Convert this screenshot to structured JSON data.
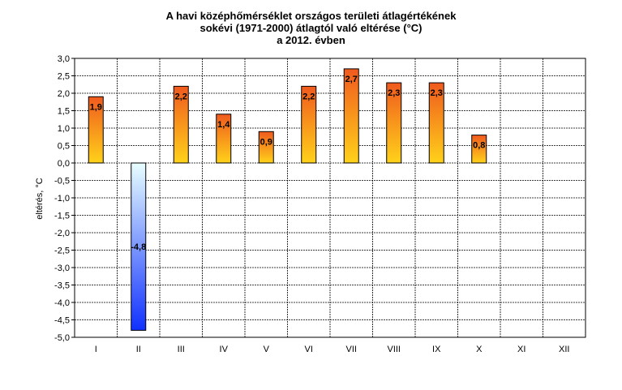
{
  "chart_data": {
    "type": "bar",
    "title": [
      "A havi középhőmérséklet országos területi átlagértékének",
      "sokévi (1971-2000) átlagtól való eltérése (°C)",
      "a 2012. évben"
    ],
    "ylabel": "eltérés, °C",
    "xlabel": "",
    "categories": [
      "I",
      "II",
      "III",
      "IV",
      "V",
      "VI",
      "VII",
      "VIII",
      "IX",
      "X",
      "XI",
      "XII"
    ],
    "values": [
      1.9,
      -4.8,
      2.2,
      1.4,
      0.9,
      2.2,
      2.7,
      2.3,
      2.3,
      0.8,
      null,
      null
    ],
    "data_labels": [
      "1,9",
      "-4,8",
      "2,2",
      "1,4",
      "0,9",
      "2,2",
      "2,7",
      "2,3",
      "2,3",
      "0,8",
      "",
      ""
    ],
    "ylim": [
      -5.0,
      3.0
    ],
    "yticks": [
      "3,0",
      "2,5",
      "2,0",
      "1,5",
      "1,0",
      "0,5",
      "0,0",
      "-0,5",
      "-1,0",
      "-1,5",
      "-2,0",
      "-2,5",
      "-3,0",
      "-3,5",
      "-4,0",
      "-4,5",
      "-5,0"
    ],
    "grid": true,
    "colors": {
      "positive_top": "#f05a1e",
      "positive_bottom": "#ffd21a",
      "negative_top": "#e8ffff",
      "negative_bottom": "#1030ff",
      "grid": "#000000"
    }
  }
}
